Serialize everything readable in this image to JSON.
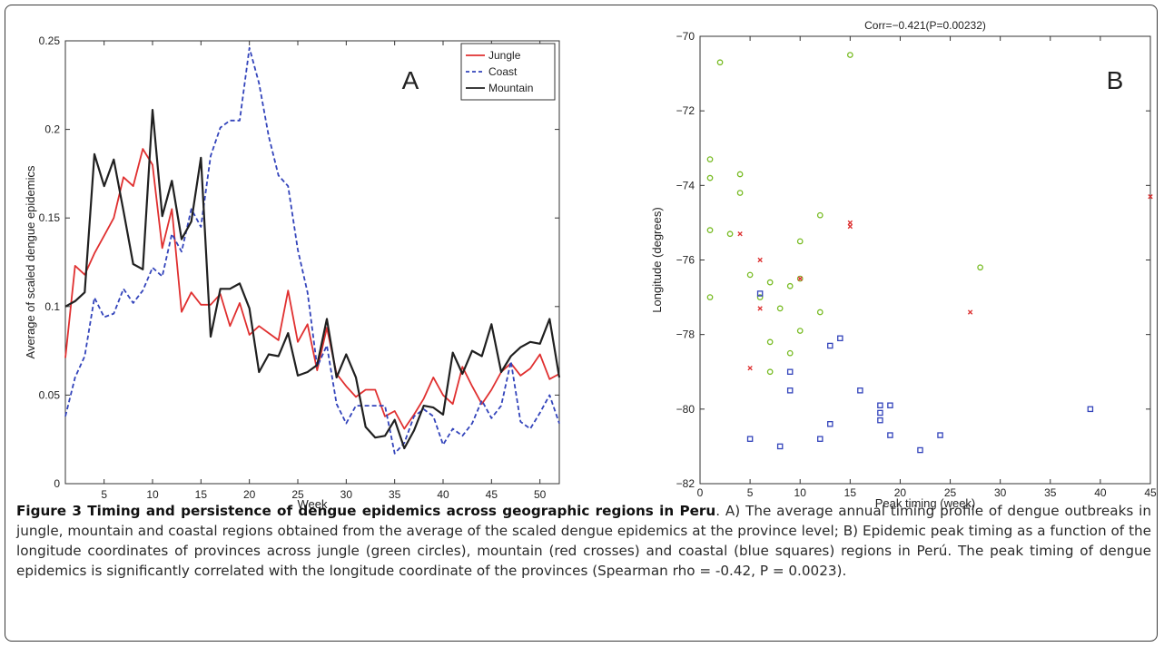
{
  "chart_data": [
    {
      "type": "line",
      "panel_letter": "A",
      "xlabel": "Week",
      "ylabel": "Average of scaled dengue epidemics",
      "xlim": [
        1,
        52
      ],
      "ylim": [
        0,
        0.25
      ],
      "xticks": [
        5,
        10,
        15,
        20,
        25,
        30,
        35,
        40,
        45,
        50
      ],
      "yticks": [
        0,
        0.05,
        0.1,
        0.15,
        0.2,
        0.25
      ],
      "ytick_labels": [
        "0",
        "0.05",
        "0.1",
        "0.15",
        "0.2",
        "0.25"
      ],
      "grid": false,
      "legend_position": "top-right",
      "x": [
        1,
        2,
        3,
        4,
        5,
        6,
        7,
        8,
        9,
        10,
        11,
        12,
        13,
        14,
        15,
        16,
        17,
        18,
        19,
        20,
        21,
        22,
        23,
        24,
        25,
        26,
        27,
        28,
        29,
        30,
        31,
        32,
        33,
        34,
        35,
        36,
        37,
        38,
        39,
        40,
        41,
        42,
        43,
        44,
        45,
        46,
        47,
        48,
        49,
        50,
        51,
        52
      ],
      "series": [
        {
          "name": "Jungle",
          "color": "#e03030",
          "style": "solid",
          "values": [
            0.071,
            0.123,
            0.118,
            0.13,
            0.14,
            0.15,
            0.173,
            0.168,
            0.189,
            0.18,
            0.133,
            0.155,
            0.097,
            0.108,
            0.101,
            0.101,
            0.107,
            0.089,
            0.102,
            0.084,
            0.089,
            0.085,
            0.081,
            0.109,
            0.08,
            0.09,
            0.064,
            0.088,
            0.062,
            0.055,
            0.049,
            0.053,
            0.053,
            0.038,
            0.041,
            0.031,
            0.039,
            0.048,
            0.06,
            0.05,
            0.045,
            0.066,
            0.055,
            0.045,
            0.053,
            0.063,
            0.068,
            0.061,
            0.065,
            0.073,
            0.059,
            0.062
          ]
        },
        {
          "name": "Coast",
          "color": "#3344bb",
          "style": "dashed",
          "values": [
            0.038,
            0.06,
            0.072,
            0.105,
            0.094,
            0.096,
            0.11,
            0.102,
            0.109,
            0.122,
            0.117,
            0.141,
            0.131,
            0.155,
            0.145,
            0.185,
            0.201,
            0.205,
            0.205,
            0.246,
            0.226,
            0.196,
            0.174,
            0.168,
            0.132,
            0.108,
            0.066,
            0.078,
            0.045,
            0.034,
            0.044,
            0.044,
            0.044,
            0.044,
            0.017,
            0.023,
            0.038,
            0.042,
            0.038,
            0.022,
            0.031,
            0.027,
            0.034,
            0.047,
            0.037,
            0.044,
            0.069,
            0.035,
            0.031,
            0.04,
            0.05,
            0.034
          ]
        },
        {
          "name": "Mountain",
          "color": "#202020",
          "style": "solid",
          "values": [
            0.1,
            0.103,
            0.108,
            0.186,
            0.168,
            0.183,
            0.154,
            0.124,
            0.121,
            0.211,
            0.151,
            0.171,
            0.138,
            0.148,
            0.184,
            0.083,
            0.11,
            0.11,
            0.113,
            0.099,
            0.063,
            0.073,
            0.072,
            0.085,
            0.061,
            0.063,
            0.067,
            0.093,
            0.06,
            0.073,
            0.06,
            0.032,
            0.026,
            0.027,
            0.036,
            0.02,
            0.03,
            0.044,
            0.043,
            0.039,
            0.074,
            0.062,
            0.075,
            0.072,
            0.09,
            0.063,
            0.072,
            0.077,
            0.08,
            0.079,
            0.093,
            0.06
          ]
        }
      ]
    },
    {
      "type": "scatter",
      "panel_letter": "B",
      "title": "Corr=−0.421(P=0.00232)",
      "xlabel": "Peak timing (week)",
      "ylabel": "Longitude (degrees)",
      "xlim": [
        0,
        45
      ],
      "ylim": [
        -82,
        -70
      ],
      "xticks": [
        0,
        5,
        10,
        15,
        20,
        25,
        30,
        35,
        40,
        45
      ],
      "yticks": [
        -82,
        -80,
        -78,
        -76,
        -74,
        -72,
        -70
      ],
      "ytick_labels": [
        "−82",
        "−80",
        "−78",
        "−76",
        "−74",
        "−72",
        "−70"
      ],
      "grid": false,
      "series": [
        {
          "marker": "circle",
          "color": "#77bb22",
          "points": [
            [
              2,
              -70.7
            ],
            [
              15,
              -70.5
            ],
            [
              1,
              -73.3
            ],
            [
              1,
              -73.8
            ],
            [
              4,
              -73.7
            ],
            [
              4,
              -74.2
            ],
            [
              1,
              -75.2
            ],
            [
              3,
              -75.3
            ],
            [
              1,
              -77.0
            ],
            [
              5,
              -76.4
            ],
            [
              6,
              -77.0
            ],
            [
              7,
              -76.6
            ],
            [
              7,
              -78.2
            ],
            [
              7,
              -79.0
            ],
            [
              8,
              -77.3
            ],
            [
              9,
              -76.7
            ],
            [
              9,
              -78.5
            ],
            [
              10,
              -75.5
            ],
            [
              10,
              -76.5
            ],
            [
              10,
              -77.9
            ],
            [
              12,
              -74.8
            ],
            [
              12,
              -77.4
            ],
            [
              28,
              -76.2
            ]
          ]
        },
        {
          "marker": "cross",
          "color": "#dd3333",
          "points": [
            [
              4,
              -75.3
            ],
            [
              5,
              -78.9
            ],
            [
              6,
              -76.0
            ],
            [
              6,
              -77.3
            ],
            [
              10,
              -76.5
            ],
            [
              15,
              -75.0
            ],
            [
              15,
              -75.1
            ],
            [
              27,
              -77.4
            ],
            [
              45,
              -74.3
            ]
          ]
        },
        {
          "marker": "square",
          "color": "#3344bb",
          "points": [
            [
              5,
              -80.8
            ],
            [
              6,
              -76.9
            ],
            [
              8,
              -81.0
            ],
            [
              9,
              -79.0
            ],
            [
              9,
              -79.5
            ],
            [
              12,
              -80.8
            ],
            [
              13,
              -78.3
            ],
            [
              13,
              -80.4
            ],
            [
              14,
              -78.1
            ],
            [
              16,
              -79.5
            ],
            [
              18,
              -79.9
            ],
            [
              18,
              -80.1
            ],
            [
              18,
              -80.3
            ],
            [
              19,
              -79.9
            ],
            [
              19,
              -80.7
            ],
            [
              22,
              -81.1
            ],
            [
              24,
              -80.7
            ],
            [
              39,
              -80.0
            ]
          ]
        }
      ]
    }
  ],
  "caption": {
    "title": "Figure 3 Timing and persistence of dengue epidemics across geographic regions in Peru",
    "body": ". A) The average annual timing profile of dengue outbreaks in jungle, mountain and coastal regions obtained from the average of the scaled dengue epidemics at the province level; B) Epidemic peak timing as a function of the longitude coordinates of provinces across jungle (green circles), mountain (red crosses) and coastal (blue squares) regions in Perú. The peak timing of dengue epidemics is significantly correlated with the longitude coordinate of the provinces (Spearman rho = -0.42, P = 0.0023)."
  }
}
